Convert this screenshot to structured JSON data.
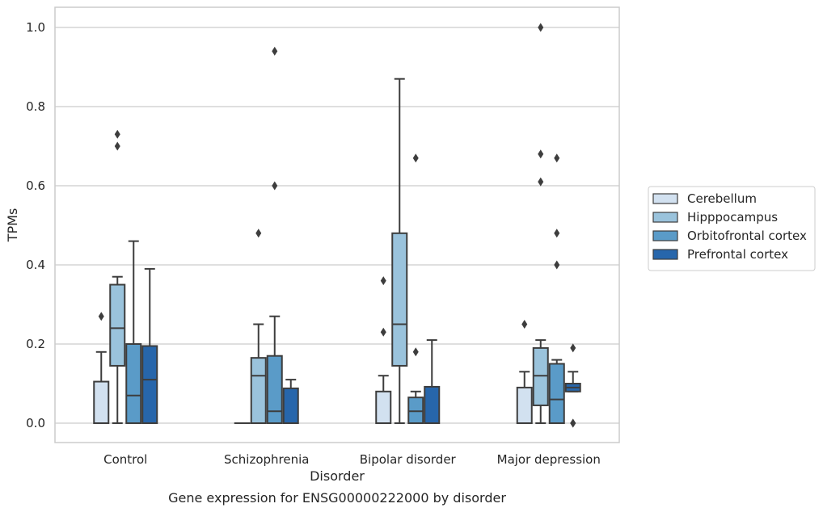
{
  "chart_data": {
    "type": "box",
    "title": "",
    "caption": "Gene expression for ENSG00000222000 by disorder",
    "xlabel": "Disorder",
    "ylabel": "TPMs",
    "ylim": [
      -0.048,
      1.05
    ],
    "yticks": [
      "0.0",
      "0.2",
      "0.4",
      "0.6",
      "0.8",
      "1.0"
    ],
    "grid": "horizontal",
    "legend_position": "right",
    "categories": [
      "Control",
      "Schizophrenia",
      "Bipolar disorder",
      "Major depression"
    ],
    "series": [
      {
        "name": "Cerebellum",
        "color": "#d2e1f0",
        "boxes": [
          {
            "q1": 0.0,
            "median": 0.0,
            "q3": 0.105,
            "whisker_low": 0.0,
            "whisker_high": 0.18,
            "outliers": [
              0.27
            ]
          },
          {
            "q1": 0.0,
            "median": 0.0,
            "q3": 0.0,
            "whisker_low": 0.0,
            "whisker_high": 0.0,
            "outliers": []
          },
          {
            "q1": 0.0,
            "median": 0.0,
            "q3": 0.08,
            "whisker_low": 0.0,
            "whisker_high": 0.12,
            "outliers": [
              0.23,
              0.36
            ]
          },
          {
            "q1": 0.0,
            "median": 0.0,
            "q3": 0.09,
            "whisker_low": 0.0,
            "whisker_high": 0.13,
            "outliers": [
              0.25
            ]
          }
        ]
      },
      {
        "name": "Hipppocampus",
        "color": "#9ac3dc",
        "boxes": [
          {
            "q1": 0.145,
            "median": 0.24,
            "q3": 0.35,
            "whisker_low": 0.0,
            "whisker_high": 0.37,
            "outliers": [
              0.7,
              0.73
            ]
          },
          {
            "q1": 0.0,
            "median": 0.12,
            "q3": 0.165,
            "whisker_low": 0.0,
            "whisker_high": 0.25,
            "outliers": [
              0.48
            ]
          },
          {
            "q1": 0.145,
            "median": 0.25,
            "q3": 0.48,
            "whisker_low": 0.0,
            "whisker_high": 0.87,
            "outliers": []
          },
          {
            "q1": 0.045,
            "median": 0.12,
            "q3": 0.19,
            "whisker_low": 0.0,
            "whisker_high": 0.21,
            "outliers": [
              0.61,
              0.68,
              1.0
            ]
          }
        ]
      },
      {
        "name": "Orbitofrontal cortex",
        "color": "#5a9bc8",
        "boxes": [
          {
            "q1": 0.0,
            "median": 0.07,
            "q3": 0.2,
            "whisker_low": 0.0,
            "whisker_high": 0.46,
            "outliers": []
          },
          {
            "q1": 0.0,
            "median": 0.03,
            "q3": 0.17,
            "whisker_low": 0.0,
            "whisker_high": 0.27,
            "outliers": [
              0.6,
              0.94
            ]
          },
          {
            "q1": 0.0,
            "median": 0.03,
            "q3": 0.065,
            "whisker_low": 0.0,
            "whisker_high": 0.08,
            "outliers": [
              0.18,
              0.67
            ]
          },
          {
            "q1": 0.0,
            "median": 0.06,
            "q3": 0.15,
            "whisker_low": 0.0,
            "whisker_high": 0.16,
            "outliers": [
              0.4,
              0.48,
              0.67
            ]
          }
        ]
      },
      {
        "name": "Prefrontal cortex",
        "color": "#2766ab",
        "boxes": [
          {
            "q1": 0.0,
            "median": 0.11,
            "q3": 0.195,
            "whisker_low": 0.0,
            "whisker_high": 0.39,
            "outliers": []
          },
          {
            "q1": 0.0,
            "median": 0.0,
            "q3": 0.088,
            "whisker_low": 0.0,
            "whisker_high": 0.11,
            "outliers": []
          },
          {
            "q1": 0.0,
            "median": 0.0,
            "q3": 0.092,
            "whisker_low": 0.0,
            "whisker_high": 0.21,
            "outliers": []
          },
          {
            "q1": 0.08,
            "median": 0.09,
            "q3": 0.1,
            "whisker_low": 0.08,
            "whisker_high": 0.13,
            "outliers": [
              0.0,
              0.0,
              0.19
            ]
          }
        ]
      }
    ]
  }
}
